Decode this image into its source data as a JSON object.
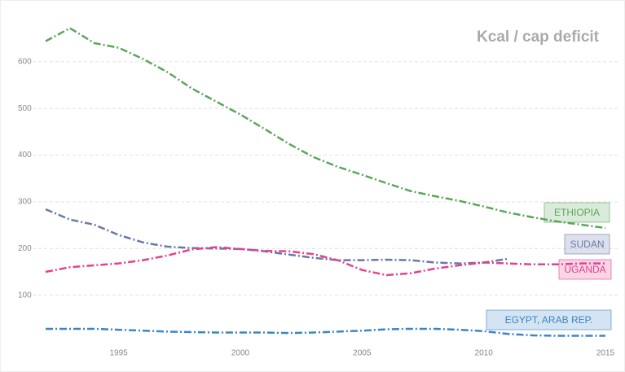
{
  "chart_data": {
    "type": "line",
    "title": "Kcal / cap deficit",
    "x": [
      1992,
      1993,
      1994,
      1995,
      1996,
      1997,
      1998,
      1999,
      2000,
      2001,
      2002,
      2003,
      2004,
      2005,
      2006,
      2007,
      2008,
      2009,
      2010,
      2011,
      2012,
      2013,
      2014,
      2015
    ],
    "xlim": [
      1992,
      2015
    ],
    "xticks": [
      1995,
      2000,
      2005,
      2010,
      2015
    ],
    "ylim": [
      0,
      680
    ],
    "yticks": [
      100,
      200,
      300,
      400,
      500,
      600
    ],
    "grid": true,
    "series": [
      {
        "name": "ETHIOPIA",
        "color": "#5aa65a",
        "values": [
          644,
          672,
          640,
          630,
          606,
          578,
          543,
          515,
          487,
          456,
          424,
          396,
          375,
          358,
          340,
          323,
          312,
          302,
          290,
          277,
          267,
          258,
          251,
          244
        ]
      },
      {
        "name": "SUDAN",
        "color": "#6a78a8",
        "values": [
          284,
          262,
          251,
          229,
          213,
          204,
          201,
          200,
          199,
          194,
          187,
          180,
          175,
          175,
          176,
          175,
          170,
          168,
          170,
          178,
          null,
          null,
          null,
          null
        ]
      },
      {
        "name": "UGANDA",
        "color": "#e2428e",
        "values": [
          150,
          160,
          164,
          168,
          175,
          185,
          198,
          203,
          199,
          195,
          194,
          188,
          175,
          154,
          143,
          147,
          157,
          164,
          170,
          168,
          166,
          166,
          168,
          168
        ]
      },
      {
        "name": "EGYPT, ARAB REP.",
        "color": "#3a86c4",
        "values": [
          28,
          28,
          28,
          26,
          24,
          22,
          21,
          20,
          20,
          20,
          19,
          20,
          22,
          24,
          27,
          28,
          28,
          26,
          23,
          17,
          14,
          13,
          13,
          13
        ]
      }
    ]
  }
}
